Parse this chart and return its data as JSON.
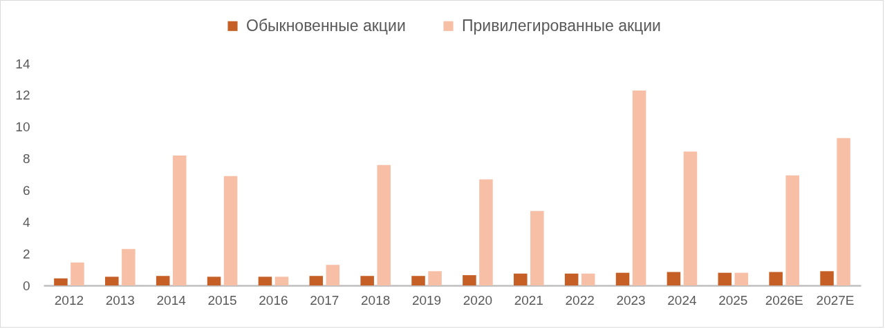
{
  "chart_data": {
    "type": "bar",
    "categories": [
      "2012",
      "2013",
      "2014",
      "2015",
      "2016",
      "2017",
      "2018",
      "2019",
      "2020",
      "2021",
      "2022",
      "2023",
      "2024",
      "2025",
      "2026E",
      "2027E"
    ],
    "series": [
      {
        "name": "Обыкновенные акции",
        "color": "#c65f25",
        "values": [
          0.45,
          0.55,
          0.6,
          0.55,
          0.55,
          0.6,
          0.6,
          0.6,
          0.65,
          0.75,
          0.75,
          0.8,
          0.85,
          0.8,
          0.85,
          0.9
        ]
      },
      {
        "name": "Привилегированные акции",
        "color": "#f6bfa6",
        "values": [
          1.45,
          2.3,
          8.2,
          6.9,
          0.55,
          1.3,
          7.6,
          0.9,
          6.7,
          4.7,
          0.75,
          12.3,
          8.45,
          0.8,
          6.95,
          9.3
        ]
      }
    ],
    "ylim": [
      0,
      14
    ],
    "yticks": [
      0,
      2,
      4,
      6,
      8,
      10,
      12,
      14
    ],
    "legend": "top"
  }
}
